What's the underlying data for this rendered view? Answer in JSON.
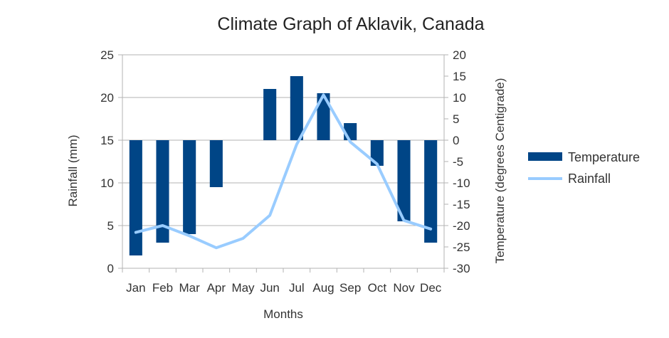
{
  "chart_data": {
    "type": "bar",
    "title": "Climate Graph of Aklavik, Canada",
    "xlabel": "Months",
    "ylabel": "Rainfall (mm)",
    "y2label": "Temperature (degrees Centigrade)",
    "categories": [
      "Jan",
      "Feb",
      "Mar",
      "Apr",
      "May",
      "Jun",
      "Jul",
      "Aug",
      "Sep",
      "Oct",
      "Nov",
      "Dec"
    ],
    "ylim": [
      0,
      25
    ],
    "y_ticks": [
      "0",
      "5",
      "10",
      "15",
      "20",
      "25"
    ],
    "y2lim": [
      -30,
      20
    ],
    "y2_ticks": [
      "-30",
      "-25",
      "-20",
      "-15",
      "-10",
      "-5",
      "0",
      "5",
      "10",
      "15",
      "20"
    ],
    "grid": true,
    "legend_position": "right",
    "series": [
      {
        "name": "Temperature",
        "kind": "bar",
        "axis": "right",
        "color": "#004586",
        "values": [
          -27,
          -24,
          -22,
          -11,
          0,
          12,
          15,
          11,
          4,
          -6,
          -19,
          -24
        ]
      },
      {
        "name": "Rainfall",
        "kind": "line",
        "axis": "left",
        "color": "#99ccff",
        "values": [
          4.2,
          5.0,
          3.8,
          2.4,
          3.5,
          6.2,
          14.5,
          20.3,
          14.8,
          12.2,
          5.6,
          4.6
        ]
      }
    ]
  }
}
